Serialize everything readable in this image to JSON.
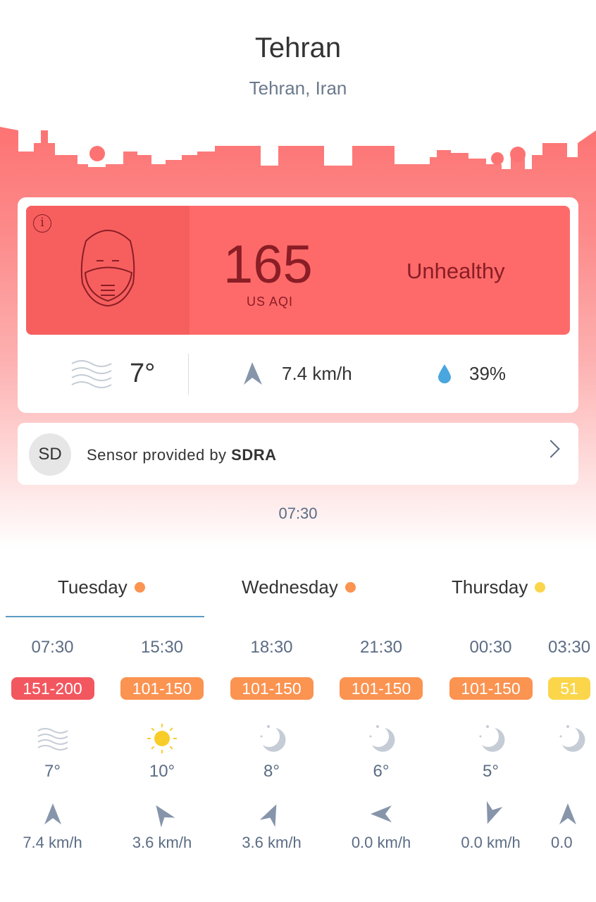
{
  "header": {
    "title": "Tehran",
    "subtitle": "Tehran, Iran"
  },
  "colors": {
    "unhealthy": "#fe6a6a",
    "unhealthy_sensitive": "#fb9351",
    "moderate": "#fbd64a",
    "aqi_text": "#8a1d25"
  },
  "aqi": {
    "value": "165",
    "unit": "US AQI",
    "status": "Unhealthy",
    "icon": "face-mask-icon"
  },
  "weather": {
    "temperature": "7°",
    "condition_icon": "fog-icon",
    "wind": "7.4 km/h",
    "humidity": "39%"
  },
  "sensor": {
    "initials": "SD",
    "prefix": "Sensor provided by ",
    "provider": "SDRA"
  },
  "updated_time": "07:30",
  "tabs": [
    {
      "label": "Tuesday",
      "dot": "#fb9351",
      "selected": true
    },
    {
      "label": "Wednesday",
      "dot": "#fb9351"
    },
    {
      "label": "Thursday",
      "dot": "#fbd64a"
    }
  ],
  "forecast": [
    {
      "time": "07:30",
      "range": "151-200",
      "color": "#f2575f",
      "icon": "fog-icon",
      "temp": "7°",
      "wind_dir_deg": 0,
      "wind": "7.4 km/h"
    },
    {
      "time": "15:30",
      "range": "101-150",
      "color": "#fb9351",
      "icon": "sun-icon",
      "temp": "10°",
      "wind_dir_deg": -35,
      "wind": "3.6 km/h"
    },
    {
      "time": "18:30",
      "range": "101-150",
      "color": "#fb9351",
      "icon": "moon-icon",
      "temp": "8°",
      "wind_dir_deg": 25,
      "wind": "3.6 km/h"
    },
    {
      "time": "21:30",
      "range": "101-150",
      "color": "#fb9351",
      "icon": "moon-icon",
      "temp": "6°",
      "wind_dir_deg": -90,
      "wind": "0.0 km/h"
    },
    {
      "time": "00:30",
      "range": "101-150",
      "color": "#fb9351",
      "icon": "moon-icon",
      "temp": "5°",
      "wind_dir_deg": 200,
      "wind": "0.0 km/h"
    },
    {
      "time": "03:30",
      "range": "51",
      "color": "#fbd64a",
      "icon": "moon-icon",
      "temp": "",
      "wind_dir_deg": 0,
      "wind": "0.0"
    }
  ]
}
